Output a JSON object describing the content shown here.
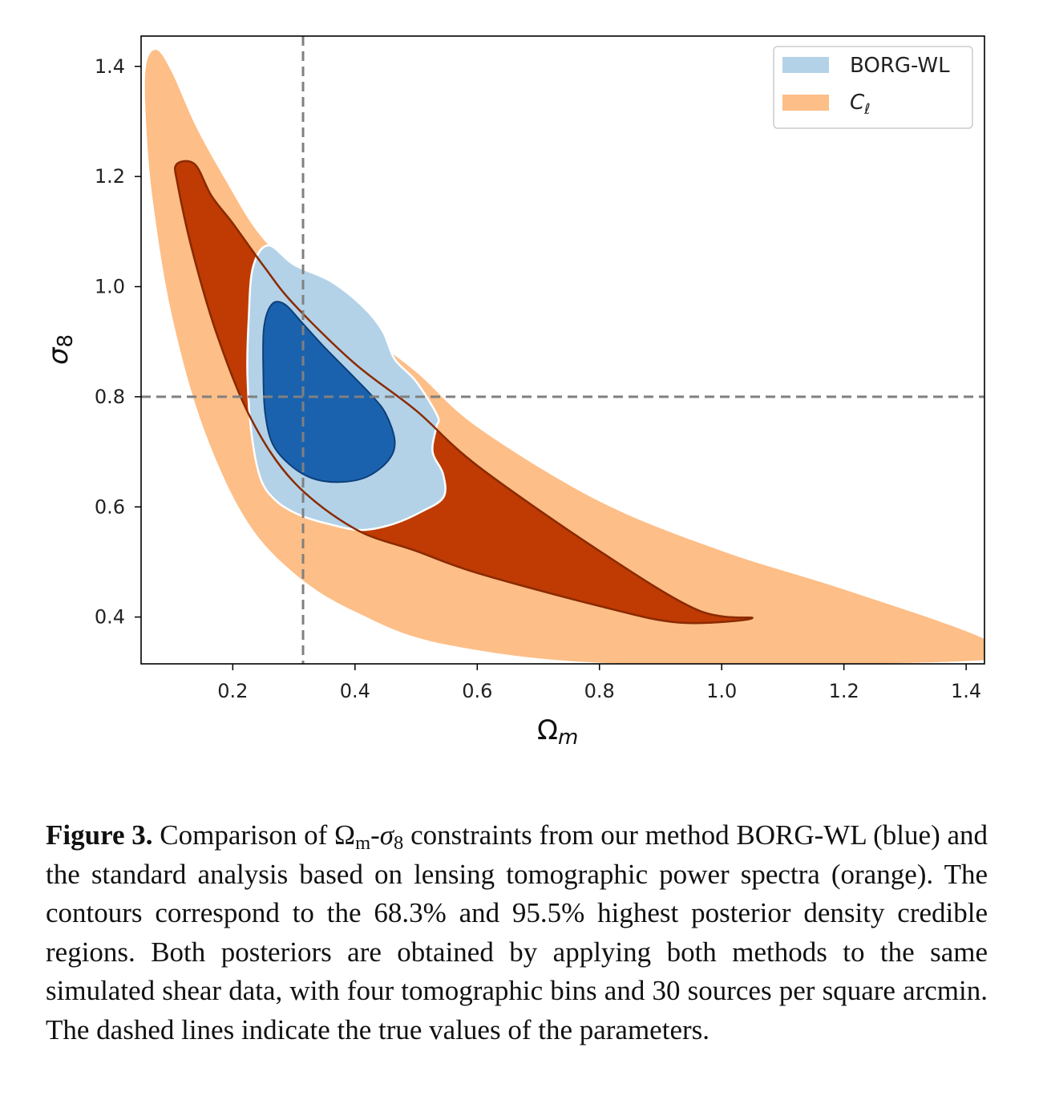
{
  "chart_data": {
    "type": "contour",
    "xlabel": "Ω",
    "xlabel_sub": "m",
    "ylabel": "σ",
    "ylabel_sub": "8",
    "xlim": [
      0.05,
      1.43
    ],
    "ylim": [
      0.315,
      1.455
    ],
    "xticks": [
      0.2,
      0.4,
      0.6,
      0.8,
      1.0,
      1.2,
      1.4
    ],
    "xtick_labels": [
      "0.2",
      "0.4",
      "0.6",
      "0.8",
      "1.0",
      "1.2",
      "1.4"
    ],
    "yticks": [
      0.4,
      0.6,
      0.8,
      1.0,
      1.2,
      1.4
    ],
    "ytick_labels": [
      "0.4",
      "0.6",
      "0.8",
      "1.0",
      "1.2",
      "1.4"
    ],
    "legend_position": "top-right",
    "truth": {
      "omega_m": 0.315,
      "sigma_8": 0.8,
      "color": "#808080",
      "style": "dashed"
    },
    "series": [
      {
        "name": "BORG-WL",
        "color_outer": "#b3d2e8",
        "color_inner": "#1b62ae",
        "regions": [
          {
            "level": "95.5%",
            "points": [
              [
                0.258,
                1.075
              ],
              [
                0.233,
                1.035
              ],
              [
                0.226,
                0.94
              ],
              [
                0.224,
                0.84
              ],
              [
                0.231,
                0.73
              ],
              [
                0.246,
                0.65
              ],
              [
                0.272,
                0.61
              ],
              [
                0.31,
                0.585
              ],
              [
                0.36,
                0.568
              ],
              [
                0.41,
                0.558
              ],
              [
                0.46,
                0.568
              ],
              [
                0.51,
                0.592
              ],
              [
                0.545,
                0.618
              ],
              [
                0.544,
                0.66
              ],
              [
                0.527,
                0.7
              ],
              [
                0.533,
                0.745
              ],
              [
                0.535,
                0.765
              ],
              [
                0.5,
                0.828
              ],
              [
                0.465,
                0.868
              ],
              [
                0.445,
                0.92
              ],
              [
                0.412,
                0.965
              ],
              [
                0.36,
                1.01
              ],
              [
                0.3,
                1.04
              ]
            ]
          },
          {
            "level": "68.3%",
            "points": [
              [
                0.264,
                0.968
              ],
              [
                0.251,
                0.925
              ],
              [
                0.25,
                0.84
              ],
              [
                0.253,
                0.77
              ],
              [
                0.265,
                0.715
              ],
              [
                0.292,
                0.678
              ],
              [
                0.33,
                0.652
              ],
              [
                0.375,
                0.645
              ],
              [
                0.42,
                0.655
              ],
              [
                0.455,
                0.685
              ],
              [
                0.465,
                0.72
              ],
              [
                0.45,
                0.77
              ],
              [
                0.425,
                0.805
              ],
              [
                0.39,
                0.845
              ],
              [
                0.35,
                0.89
              ],
              [
                0.313,
                0.935
              ],
              [
                0.285,
                0.968
              ]
            ]
          }
        ]
      },
      {
        "name": "C_ℓ",
        "color_outer": "#fdbe87",
        "color_inner": "#bf3b03",
        "regions": [
          {
            "level": "95.5%",
            "points": [
              [
                0.058,
                1.4
              ],
              [
                0.075,
                1.43
              ],
              [
                0.1,
                1.39
              ],
              [
                0.14,
                1.29
              ],
              [
                0.19,
                1.19
              ],
              [
                0.24,
                1.1
              ],
              [
                0.3,
                1.03
              ],
              [
                0.4,
                0.93
              ],
              [
                0.5,
                0.845
              ],
              [
                0.6,
                0.745
              ],
              [
                0.8,
                0.61
              ],
              [
                1.0,
                0.52
              ],
              [
                1.2,
                0.45
              ],
              [
                1.43,
                0.36
              ],
              [
                1.43,
                0.322
              ],
              [
                0.85,
                0.315
              ],
              [
                0.55,
                0.35
              ],
              [
                0.4,
                0.41
              ],
              [
                0.3,
                0.48
              ],
              [
                0.22,
                0.58
              ],
              [
                0.15,
                0.75
              ],
              [
                0.1,
                0.95
              ],
              [
                0.07,
                1.15
              ],
              [
                0.058,
                1.3
              ]
            ]
          },
          {
            "level": "68.3%",
            "points": [
              [
                0.108,
                1.222
              ],
              [
                0.138,
                1.222
              ],
              [
                0.165,
                1.165
              ],
              [
                0.2,
                1.115
              ],
              [
                0.25,
                1.038
              ],
              [
                0.3,
                0.968
              ],
              [
                0.4,
                0.86
              ],
              [
                0.5,
                0.775
              ],
              [
                0.6,
                0.675
              ],
              [
                0.8,
                0.52
              ],
              [
                0.96,
                0.413
              ],
              [
                1.05,
                0.398
              ],
              [
                0.93,
                0.39
              ],
              [
                0.8,
                0.42
              ],
              [
                0.6,
                0.48
              ],
              [
                0.5,
                0.52
              ],
              [
                0.4,
                0.56
              ],
              [
                0.3,
                0.645
              ],
              [
                0.23,
                0.76
              ],
              [
                0.175,
                0.91
              ],
              [
                0.135,
                1.06
              ],
              [
                0.11,
                1.185
              ]
            ]
          }
        ]
      }
    ]
  },
  "legend": {
    "items": [
      {
        "label": "BORG-WL",
        "color": "#b3d2e8"
      },
      {
        "label": "C",
        "sub": "ℓ",
        "color": "#fdbe87"
      }
    ]
  },
  "caption": {
    "label": "Figure 3.",
    "text_before": "Comparison of Ω",
    "sub_m": "m",
    "dash": "-",
    "sigma": "σ",
    "sub_8": "8",
    "text_after": "constraints from our method BORG-WL (blue) and the standard analysis based on lensing tomographic power spectra (orange). The contours correspond to the 68.3% and 95.5% highest posterior density credible regions. Both posteriors are obtained by applying both methods to the same simulated shear data, with four tomographic bins and 30 sources per square arcmin. The dashed lines indicate the true values of the parameters."
  }
}
